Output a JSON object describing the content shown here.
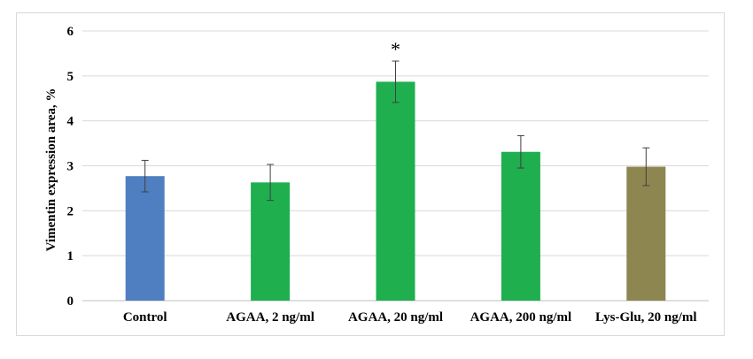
{
  "chart_data": {
    "type": "bar",
    "title": "",
    "xlabel": "",
    "ylabel": "Vimentin expression area, %",
    "ylim": [
      0,
      6
    ],
    "yticks": [
      0,
      1,
      2,
      3,
      4,
      5,
      6
    ],
    "grid": true,
    "legend": "none",
    "categories": [
      "Control",
      "AGAA, 2 ng/ml",
      "AGAA, 20 ng/ml",
      "AGAA, 200 ng/ml",
      "Lys-Glu, 20 ng/ml"
    ],
    "values": [
      2.77,
      2.63,
      4.87,
      3.31,
      2.98
    ],
    "errors": [
      0.35,
      0.4,
      0.46,
      0.36,
      0.42
    ],
    "colors": [
      "#4f7fc0",
      "#1faf4f",
      "#1faf4f",
      "#1faf4f",
      "#8d8650"
    ],
    "annotations": [
      "",
      "",
      "*",
      "",
      ""
    ]
  }
}
